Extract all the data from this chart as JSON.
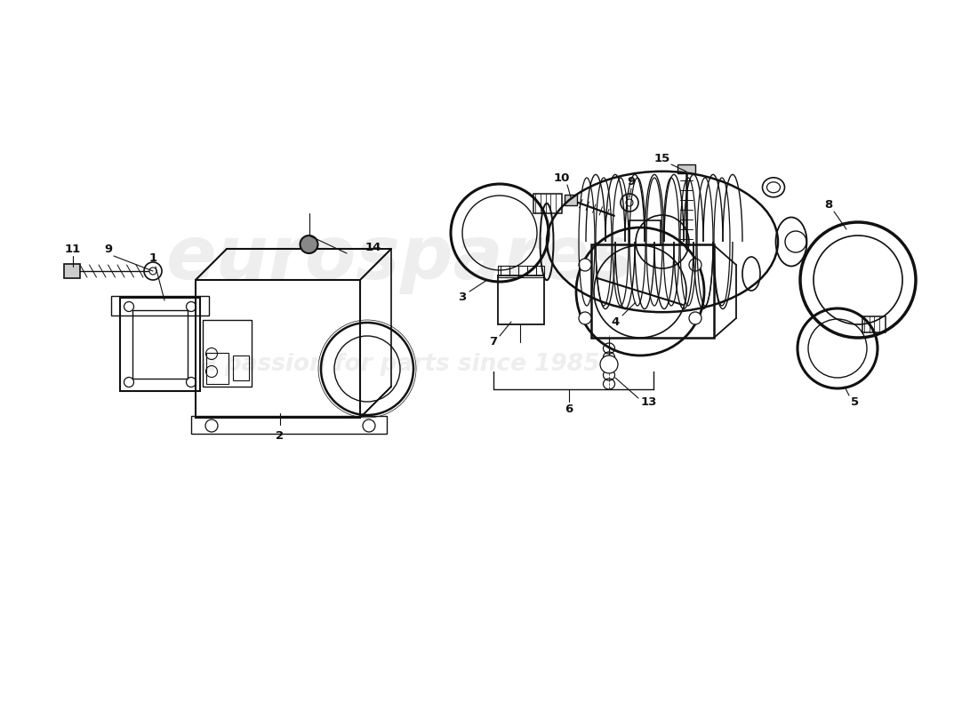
{
  "bg": "#ffffff",
  "lc": "#111111",
  "wc": "#d8d8d8",
  "figsize": [
    11.0,
    8.0
  ],
  "dpi": 100,
  "xlim": [
    0,
    11
  ],
  "ylim": [
    0,
    8
  ]
}
